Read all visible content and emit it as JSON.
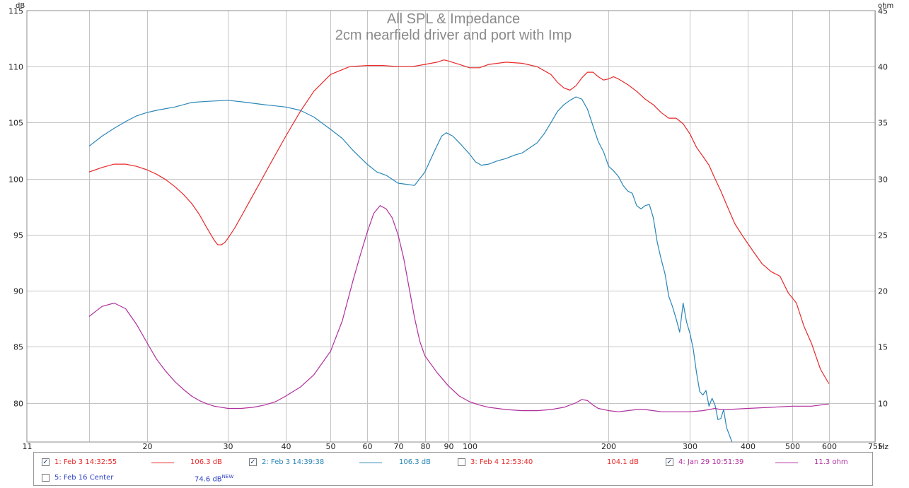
{
  "chart_data": {
    "type": "line",
    "title": "All SPL & Impedance",
    "subtitle": "2cm nearfield driver and port with Imp",
    "x_axis": {
      "scale": "log",
      "range": [
        11,
        755
      ],
      "unit_label": "Hz",
      "ticks": [
        11,
        20,
        30,
        40,
        50,
        60,
        70,
        80,
        90,
        100,
        200,
        300,
        400,
        500,
        600,
        755
      ],
      "tick_labels": [
        "11",
        "20",
        "30",
        "40",
        "50",
        "60",
        "70",
        "80",
        "90",
        "100",
        "200",
        "300",
        "400",
        "500",
        "600",
        "755"
      ],
      "minor_gridlines": [
        15
      ]
    },
    "y_left": {
      "unit_label": "dB",
      "range": [
        76.5,
        115
      ],
      "ticks": [
        80,
        85,
        90,
        95,
        100,
        105,
        110,
        115
      ],
      "tick_labels": [
        "80",
        "85",
        "90",
        "95",
        "100",
        "105",
        "110",
        "115"
      ]
    },
    "y_right": {
      "unit_label": "ohm",
      "range": [
        6.5,
        45
      ],
      "ticks": [
        10,
        15,
        20,
        25,
        30,
        35,
        40,
        45
      ],
      "tick_labels": [
        "10",
        "15",
        "20",
        "25",
        "30",
        "35",
        "40",
        "45"
      ]
    },
    "grid": true,
    "series": [
      {
        "name": "1: Feb 3 14:32:55",
        "color": "#e8292a",
        "axis": "left",
        "points": [
          [
            15,
            100.6
          ],
          [
            16,
            101
          ],
          [
            17,
            101.3
          ],
          [
            18,
            101.3
          ],
          [
            19,
            101.1
          ],
          [
            20,
            100.8
          ],
          [
            21,
            100.4
          ],
          [
            22,
            99.9
          ],
          [
            23,
            99.3
          ],
          [
            24,
            98.6
          ],
          [
            25,
            97.8
          ],
          [
            26,
            96.8
          ],
          [
            27,
            95.6
          ],
          [
            28,
            94.5
          ],
          [
            28.5,
            94.1
          ],
          [
            29,
            94.1
          ],
          [
            29.5,
            94.3
          ],
          [
            30,
            94.7
          ],
          [
            31,
            95.6
          ],
          [
            32,
            96.6
          ],
          [
            33,
            97.6
          ],
          [
            35,
            99.5
          ],
          [
            37,
            101.3
          ],
          [
            40,
            103.8
          ],
          [
            43,
            106
          ],
          [
            46,
            107.8
          ],
          [
            50,
            109.3
          ],
          [
            55,
            110
          ],
          [
            60,
            110.1
          ],
          [
            65,
            110.1
          ],
          [
            70,
            110
          ],
          [
            75,
            110
          ],
          [
            80,
            110.2
          ],
          [
            85,
            110.4
          ],
          [
            88,
            110.6
          ],
          [
            90,
            110.5
          ],
          [
            95,
            110.2
          ],
          [
            100,
            109.9
          ],
          [
            105,
            109.9
          ],
          [
            110,
            110.2
          ],
          [
            120,
            110.4
          ],
          [
            130,
            110.3
          ],
          [
            140,
            110
          ],
          [
            150,
            109.3
          ],
          [
            155,
            108.6
          ],
          [
            160,
            108.1
          ],
          [
            165,
            107.9
          ],
          [
            170,
            108.3
          ],
          [
            175,
            109
          ],
          [
            180,
            109.5
          ],
          [
            185,
            109.5
          ],
          [
            190,
            109.1
          ],
          [
            195,
            108.8
          ],
          [
            200,
            108.9
          ],
          [
            205,
            109.1
          ],
          [
            210,
            108.9
          ],
          [
            220,
            108.4
          ],
          [
            230,
            107.8
          ],
          [
            240,
            107.1
          ],
          [
            250,
            106.6
          ],
          [
            260,
            105.9
          ],
          [
            270,
            105.4
          ],
          [
            280,
            105.4
          ],
          [
            290,
            104.9
          ],
          [
            300,
            104
          ],
          [
            310,
            102.8
          ],
          [
            320,
            102
          ],
          [
            330,
            101.2
          ],
          [
            340,
            100
          ],
          [
            350,
            98.9
          ],
          [
            360,
            97.7
          ],
          [
            375,
            96
          ],
          [
            390,
            94.9
          ],
          [
            410,
            93.6
          ],
          [
            430,
            92.4
          ],
          [
            450,
            91.7
          ],
          [
            470,
            91.3
          ],
          [
            490,
            89.8
          ],
          [
            510,
            88.9
          ],
          [
            530,
            86.8
          ],
          [
            550,
            85.3
          ],
          [
            575,
            83
          ],
          [
            600,
            81.7
          ]
        ]
      },
      {
        "name": "2: Feb 3 14:39:38",
        "color": "#2a86b6",
        "axis": "left",
        "points": [
          [
            15,
            102.9
          ],
          [
            16,
            103.8
          ],
          [
            17,
            104.5
          ],
          [
            18,
            105.1
          ],
          [
            19,
            105.6
          ],
          [
            20,
            105.9
          ],
          [
            21,
            106.1
          ],
          [
            23,
            106.4
          ],
          [
            25,
            106.8
          ],
          [
            27,
            106.9
          ],
          [
            30,
            107
          ],
          [
            33,
            106.8
          ],
          [
            36,
            106.6
          ],
          [
            40,
            106.4
          ],
          [
            43,
            106.1
          ],
          [
            46,
            105.5
          ],
          [
            50,
            104.4
          ],
          [
            53,
            103.6
          ],
          [
            56,
            102.5
          ],
          [
            60,
            101.3
          ],
          [
            63,
            100.6
          ],
          [
            66,
            100.3
          ],
          [
            70,
            99.6
          ],
          [
            73,
            99.5
          ],
          [
            76,
            99.4
          ],
          [
            80,
            100.6
          ],
          [
            84,
            102.5
          ],
          [
            87,
            103.8
          ],
          [
            89,
            104.1
          ],
          [
            92,
            103.8
          ],
          [
            96,
            103
          ],
          [
            100,
            102.2
          ],
          [
            103,
            101.5
          ],
          [
            106,
            101.2
          ],
          [
            110,
            101.3
          ],
          [
            115,
            101.6
          ],
          [
            120,
            101.8
          ],
          [
            125,
            102.1
          ],
          [
            130,
            102.3
          ],
          [
            140,
            103.2
          ],
          [
            145,
            104
          ],
          [
            150,
            105
          ],
          [
            155,
            106
          ],
          [
            160,
            106.6
          ],
          [
            165,
            107
          ],
          [
            170,
            107.3
          ],
          [
            175,
            107.1
          ],
          [
            180,
            106.2
          ],
          [
            185,
            104.7
          ],
          [
            190,
            103.3
          ],
          [
            195,
            102.4
          ],
          [
            200,
            101.1
          ],
          [
            205,
            100.7
          ],
          [
            210,
            100.2
          ],
          [
            215,
            99.4
          ],
          [
            220,
            98.9
          ],
          [
            225,
            98.7
          ],
          [
            230,
            97.6
          ],
          [
            235,
            97.3
          ],
          [
            240,
            97.6
          ],
          [
            245,
            97.7
          ],
          [
            250,
            96.5
          ],
          [
            255,
            94.3
          ],
          [
            260,
            92.8
          ],
          [
            265,
            91.5
          ],
          [
            270,
            89.5
          ],
          [
            275,
            88.6
          ],
          [
            280,
            87.5
          ],
          [
            285,
            86.3
          ],
          [
            290,
            88.9
          ],
          [
            295,
            87.2
          ],
          [
            300,
            86.2
          ],
          [
            305,
            84.8
          ],
          [
            310,
            82.7
          ],
          [
            315,
            81
          ],
          [
            320,
            80.7
          ],
          [
            325,
            81.1
          ],
          [
            330,
            79.7
          ],
          [
            335,
            80.4
          ],
          [
            340,
            79.8
          ],
          [
            345,
            78.5
          ],
          [
            350,
            78.6
          ],
          [
            355,
            79.4
          ],
          [
            360,
            77.8
          ],
          [
            370,
            76.5
          ]
        ]
      },
      {
        "name": "4: Jan 29 10:51:39",
        "color": "#b0309e",
        "axis": "right",
        "points": [
          [
            15,
            17.7
          ],
          [
            16,
            18.6
          ],
          [
            17,
            18.9
          ],
          [
            18,
            18.4
          ],
          [
            19,
            17
          ],
          [
            20,
            15.4
          ],
          [
            21,
            13.9
          ],
          [
            22,
            12.8
          ],
          [
            23,
            11.9
          ],
          [
            24,
            11.2
          ],
          [
            25,
            10.6
          ],
          [
            26,
            10.2
          ],
          [
            27,
            9.9
          ],
          [
            28,
            9.7
          ],
          [
            30,
            9.5
          ],
          [
            32,
            9.5
          ],
          [
            34,
            9.6
          ],
          [
            36,
            9.8
          ],
          [
            38,
            10.1
          ],
          [
            40,
            10.6
          ],
          [
            43,
            11.4
          ],
          [
            46,
            12.5
          ],
          [
            50,
            14.6
          ],
          [
            53,
            17.3
          ],
          [
            56,
            21
          ],
          [
            58,
            23.2
          ],
          [
            60,
            25.2
          ],
          [
            62,
            26.9
          ],
          [
            64,
            27.6
          ],
          [
            66,
            27.3
          ],
          [
            68,
            26.5
          ],
          [
            70,
            25
          ],
          [
            72,
            22.9
          ],
          [
            74,
            20.2
          ],
          [
            76,
            17.6
          ],
          [
            78,
            15.5
          ],
          [
            80,
            14.2
          ],
          [
            85,
            12.7
          ],
          [
            90,
            11.5
          ],
          [
            95,
            10.6
          ],
          [
            100,
            10.1
          ],
          [
            105,
            9.8
          ],
          [
            110,
            9.6
          ],
          [
            120,
            9.4
          ],
          [
            130,
            9.3
          ],
          [
            140,
            9.3
          ],
          [
            150,
            9.4
          ],
          [
            160,
            9.6
          ],
          [
            170,
            10
          ],
          [
            175,
            10.3
          ],
          [
            180,
            10.2
          ],
          [
            185,
            9.8
          ],
          [
            190,
            9.5
          ],
          [
            200,
            9.3
          ],
          [
            210,
            9.2
          ],
          [
            220,
            9.3
          ],
          [
            230,
            9.4
          ],
          [
            240,
            9.4
          ],
          [
            250,
            9.3
          ],
          [
            260,
            9.2
          ],
          [
            270,
            9.2
          ],
          [
            280,
            9.2
          ],
          [
            290,
            9.2
          ],
          [
            300,
            9.2
          ],
          [
            320,
            9.3
          ],
          [
            340,
            9.5
          ],
          [
            350,
            9.4
          ],
          [
            360,
            9.4
          ],
          [
            400,
            9.5
          ],
          [
            450,
            9.6
          ],
          [
            500,
            9.7
          ],
          [
            550,
            9.7
          ],
          [
            600,
            9.9
          ]
        ]
      }
    ]
  },
  "legend": {
    "items": [
      {
        "label": "1: Feb 3 14:32:55",
        "checked": true,
        "color": "#e8292a",
        "value": "106.3 dB",
        "show_line": true
      },
      {
        "label": "2: Feb 3 14:39:38",
        "checked": true,
        "color": "#2a86b6",
        "value": "106.3 dB",
        "show_line": true
      },
      {
        "label": "3: Feb 4 12:53:40",
        "checked": false,
        "color": "#e8292a",
        "value": "104.1 dB",
        "show_line": false
      },
      {
        "label": "4: Jan 29 10:51:39",
        "checked": true,
        "color": "#b0309e",
        "value": "11.3 ohm",
        "show_line": true
      },
      {
        "label": "5: Feb 16 Center",
        "checked": false,
        "color": "#2b3fc4",
        "value": "74.6 dB",
        "value_sup": "NEW",
        "show_line": false
      }
    ]
  },
  "colors": {
    "grid": "#c4c4c4",
    "frame": "#8c8c8c",
    "title": "#8a8a8a"
  }
}
